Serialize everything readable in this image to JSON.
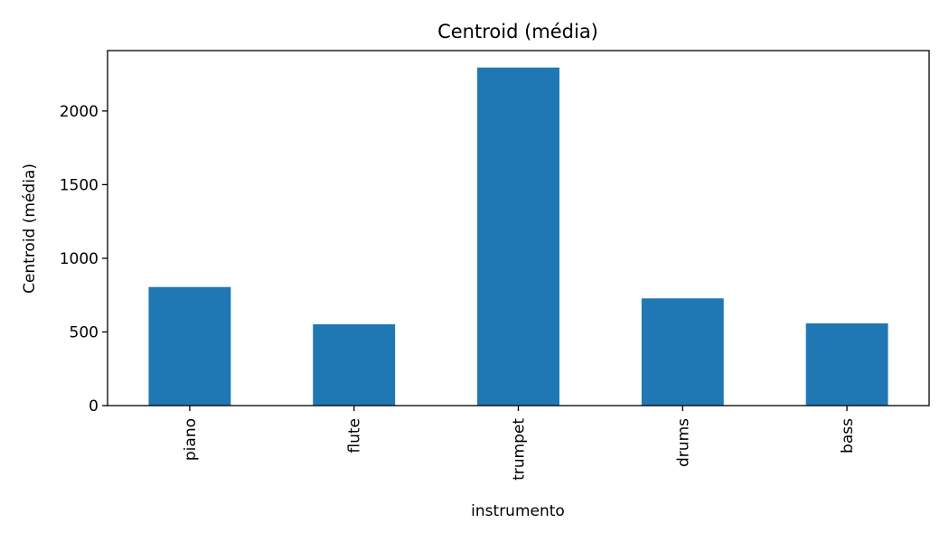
{
  "chart_data": {
    "type": "bar",
    "title": "Centroid (média)",
    "xlabel": "instrumento",
    "ylabel": "Centroid (média)",
    "categories": [
      "piano",
      "flute",
      "trumpet",
      "drums",
      "bass"
    ],
    "values": [
      805,
      552,
      2295,
      728,
      558
    ],
    "ylim": [
      0,
      2410
    ],
    "yticks": [
      0,
      500,
      1000,
      1500,
      2000
    ],
    "grid": false,
    "legend": "none",
    "bar_color": "#1f77b4"
  }
}
